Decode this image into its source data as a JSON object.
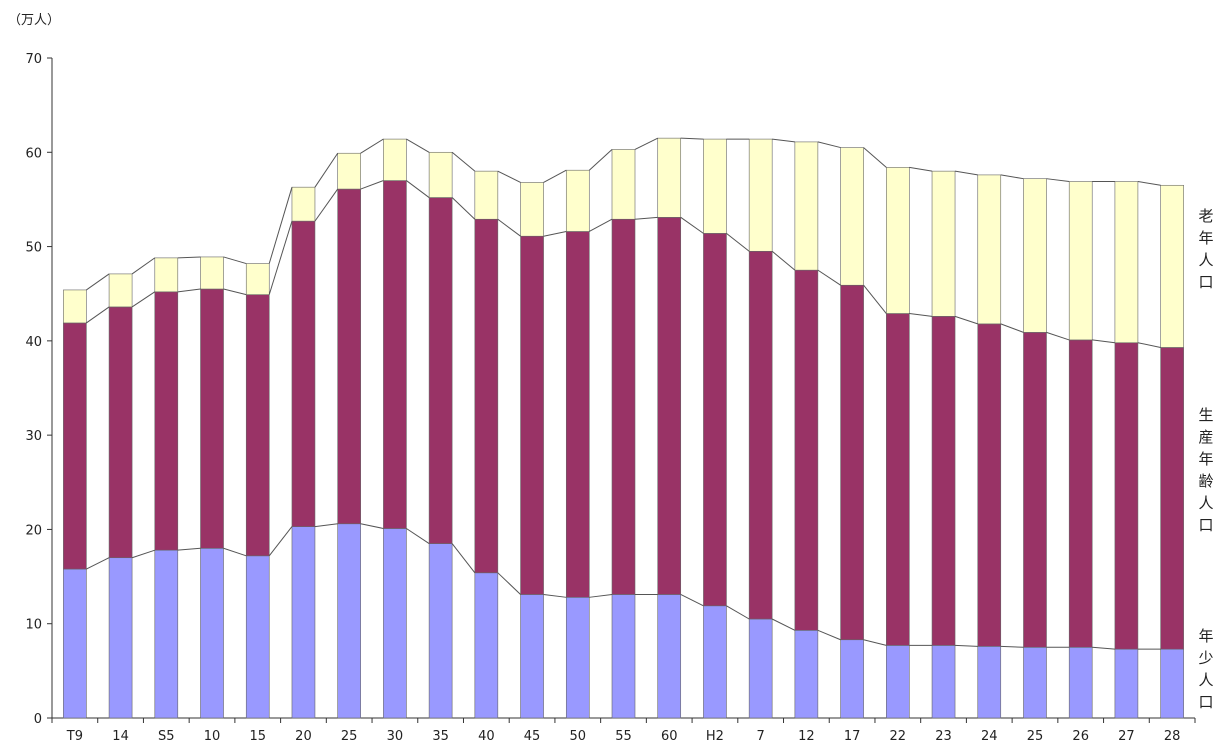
{
  "chart_data": {
    "type": "bar",
    "stacked": true,
    "unit_label": "（万人）",
    "categories": [
      "T9",
      "14",
      "S5",
      "10",
      "15",
      "20",
      "25",
      "30",
      "35",
      "40",
      "45",
      "50",
      "55",
      "60",
      "H2",
      "7",
      "12",
      "17",
      "22",
      "23",
      "24",
      "25",
      "26",
      "27",
      "28"
    ],
    "ylim": [
      0,
      70
    ],
    "yticks": [
      0,
      10,
      20,
      30,
      40,
      50,
      60,
      70
    ],
    "grid": false,
    "connector_lines": true,
    "series": [
      {
        "name": "年少人口",
        "color": "#9999ff",
        "values": [
          15.8,
          17.0,
          17.8,
          18.0,
          17.2,
          20.3,
          20.6,
          20.1,
          18.5,
          15.4,
          13.1,
          12.8,
          13.1,
          13.1,
          11.9,
          10.5,
          9.3,
          8.3,
          7.7,
          7.7,
          7.6,
          7.5,
          7.5,
          7.3,
          7.3
        ]
      },
      {
        "name": "生産年齢人口",
        "color": "#993366",
        "values": [
          26.1,
          26.6,
          27.4,
          27.5,
          27.7,
          32.4,
          35.5,
          36.9,
          36.7,
          37.5,
          38.0,
          38.8,
          39.8,
          40.0,
          39.5,
          39.0,
          38.2,
          37.6,
          35.2,
          34.9,
          34.2,
          33.4,
          32.6,
          32.5,
          32.0
        ]
      },
      {
        "name": "老年人口",
        "color": "#ffffcc",
        "values": [
          3.5,
          3.5,
          3.6,
          3.4,
          3.3,
          3.6,
          3.8,
          4.4,
          4.8,
          5.1,
          5.7,
          6.5,
          7.4,
          8.4,
          10.0,
          11.9,
          13.6,
          14.6,
          15.5,
          15.4,
          15.8,
          16.3,
          16.8,
          17.1,
          17.2
        ]
      }
    ]
  },
  "labels": {
    "old": [
      "老",
      "年",
      "人",
      "口"
    ],
    "working": [
      "生",
      "産",
      "年",
      "齢",
      "人",
      "口"
    ],
    "young": [
      "年",
      "少",
      "人",
      "口"
    ]
  }
}
